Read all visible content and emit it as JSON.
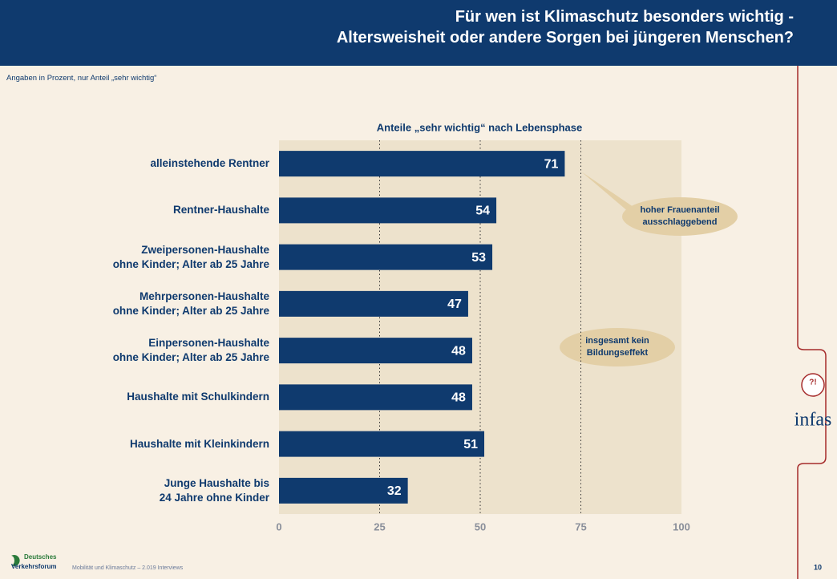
{
  "header": {
    "title": "Für wen ist Klimaschutz besonders wichtig -\nAltersweisheit oder andere Sorgen bei jüngeren Menschen?"
  },
  "subtitle": "Angaben in Prozent, nur Anteil „sehr wichtig“",
  "chart_data": {
    "type": "hbar",
    "title": "Anteile „sehr wichtig“ nach Lebensphase",
    "categories": [
      "alleinstehende Rentner",
      "Rentner-Haushalte",
      "Zweipersonen-Haushalte\nohne Kinder; Alter ab 25 Jahre",
      "Mehrpersonen-Haushalte\nohne Kinder; Alter ab 25 Jahre",
      "Einpersonen-Haushalte\nohne Kinder; Alter ab 25 Jahre",
      "Haushalte mit Schulkindern",
      "Haushalte mit Kleinkindern",
      "Junge Haushalte bis\n24 Jahre ohne Kinder"
    ],
    "values": [
      71,
      54,
      53,
      47,
      48,
      48,
      51,
      32
    ],
    "color": "#0f3a6e",
    "xlim": [
      0,
      100
    ],
    "xticks": [
      0,
      25,
      50,
      75,
      100
    ],
    "grid": true,
    "annotations": [
      "hoher Frauenanteil\nausschlaggebend",
      "insgesamt kein\nBildungseffekt"
    ]
  },
  "footer": {
    "logo_line1": "Deutsches",
    "logo_line2": "Verkehrsforum",
    "text": "Mobilität und Klimaschutz – 2.019 Interviews",
    "page": "10",
    "brand": "infas"
  }
}
